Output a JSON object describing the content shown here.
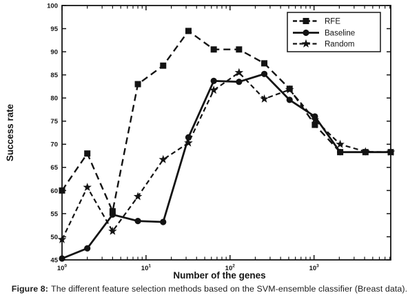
{
  "figure": {
    "background": "#ffffff",
    "ink_color": "#131313"
  },
  "chart_data": {
    "type": "line",
    "title": "",
    "xlabel": "Number of the genes",
    "ylabel": "Success rate",
    "x_scale": "log",
    "grid": false,
    "ylim": [
      45,
      100
    ],
    "x": [
      1,
      2,
      4,
      8,
      16,
      32,
      64,
      128,
      256,
      512,
      1024,
      2048,
      4096,
      8192
    ],
    "series": [
      {
        "name": "RFE",
        "marker": "square",
        "line_style": "dashed",
        "values": [
          60,
          68,
          55.5,
          83,
          87,
          94.5,
          90.5,
          90.5,
          87.5,
          82,
          74.2,
          68.3,
          68.3,
          68.3
        ]
      },
      {
        "name": "Baseline",
        "marker": "circle",
        "line_style": "solid",
        "values": [
          45.3,
          47.5,
          54.8,
          53.4,
          53.2,
          71.5,
          83.7,
          83.5,
          85.2,
          79.6,
          76,
          68.3,
          68.3,
          68.3
        ]
      },
      {
        "name": "Random",
        "marker": "star",
        "line_style": "dashed",
        "values": [
          49.4,
          60.7,
          51.2,
          58.7,
          66.7,
          70.3,
          81.7,
          85.5,
          79.8,
          81.8,
          75.3,
          70,
          68.4,
          68.3
        ]
      }
    ],
    "ytick_labels": [
      "45",
      "50",
      "55",
      "60",
      "65",
      "70",
      "75",
      "80",
      "85",
      "90",
      "95",
      "100"
    ],
    "xtick_labels": [
      {
        "base": "10",
        "exp": "0"
      },
      {
        "base": "10",
        "exp": "1"
      },
      {
        "base": "10",
        "exp": "2"
      },
      {
        "base": "10",
        "exp": "3"
      }
    ],
    "legend": {
      "position": "top-right",
      "entries": [
        "RFE",
        "Baseline",
        "Random"
      ]
    }
  },
  "caption": {
    "prefix": "Figure 8:",
    "text": "The different feature selection methods based on the SVM-ensemble classifier (Breast data)."
  }
}
